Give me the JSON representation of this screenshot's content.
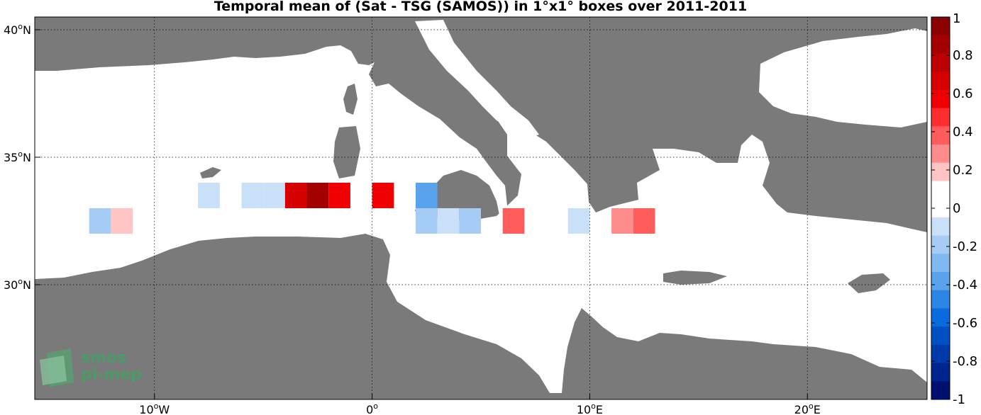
{
  "title": "Temporal mean of (Sat - TSG (SAMOS)) in 1°x1° boxes over 2011-2011",
  "map": {
    "lon_range": [
      -15.5,
      25.5
    ],
    "lat_range": [
      25.5,
      40.5
    ],
    "land_color": "#7a7a7a",
    "sea_color": "#ffffff",
    "lat_ticks": [
      {
        "value": 40,
        "deg": "40",
        "hemi": "N"
      },
      {
        "value": 35,
        "deg": "35",
        "hemi": "N"
      },
      {
        "value": 30,
        "deg": "30",
        "hemi": "N"
      }
    ],
    "lon_ticks": [
      {
        "value": -10,
        "deg": "10",
        "hemi": "W"
      },
      {
        "value": 0,
        "deg": "0",
        "hemi": ""
      },
      {
        "value": 10,
        "deg": "10",
        "hemi": "E"
      },
      {
        "value": 20,
        "deg": "20",
        "hemi": "E"
      }
    ]
  },
  "chart_data": {
    "type": "heatmap",
    "title": "Temporal mean of (Sat - TSG (SAMOS)) in 1°x1° boxes over 2011-2011",
    "cell_size_deg": 1,
    "cells": [
      {
        "lon": -12.5,
        "lat": 32.5,
        "value": -0.2
      },
      {
        "lon": -11.5,
        "lat": 32.5,
        "value": 0.2
      },
      {
        "lon": -9.5,
        "lat": 32.5,
        "value": 0.1
      },
      {
        "lon": -8.5,
        "lat": 32.5,
        "value": 0.1
      },
      {
        "lon": -7.5,
        "lat": 33.5,
        "value": -0.1
      },
      {
        "lon": -5.5,
        "lat": 33.5,
        "value": -0.1
      },
      {
        "lon": -4.5,
        "lat": 33.5,
        "value": -0.1
      },
      {
        "lon": -3.5,
        "lat": 33.5,
        "value": 0.7
      },
      {
        "lon": -2.5,
        "lat": 33.5,
        "value": 0.85
      },
      {
        "lon": -1.5,
        "lat": 33.5,
        "value": 0.6
      },
      {
        "lon": 0.5,
        "lat": 33.5,
        "value": 0.6
      },
      {
        "lon": 2.5,
        "lat": 33.5,
        "value": -0.4
      },
      {
        "lon": 2.5,
        "lat": 32.5,
        "value": -0.2
      },
      {
        "lon": 3.5,
        "lat": 32.5,
        "value": -0.1
      },
      {
        "lon": 4.5,
        "lat": 32.5,
        "value": -0.2
      },
      {
        "lon": 6.5,
        "lat": 32.5,
        "value": 0.4
      },
      {
        "lon": 9.5,
        "lat": 32.5,
        "value": -0.1
      },
      {
        "lon": 11.5,
        "lat": 32.5,
        "value": 0.3
      },
      {
        "lon": 12.5,
        "lat": 32.5,
        "value": 0.4
      },
      {
        "lon": 13.5,
        "lat": 32.5,
        "value": 0.1
      },
      {
        "lon": 12.5,
        "lat": 31.5,
        "value": 0.1
      }
    ],
    "colorbar": {
      "range": [
        -1,
        1
      ],
      "ticks": [
        1,
        0.8,
        0.6,
        0.4,
        0.2,
        0,
        -0.2,
        -0.4,
        -0.6,
        -0.8,
        -1
      ],
      "tick_labels": [
        "1",
        "0.8",
        "0.6",
        "0.4",
        "0.2",
        "0",
        "-0.2",
        "-0.4",
        "-0.6",
        "-0.8",
        "-1"
      ],
      "colors_top_to_bottom": [
        "#8b0000",
        "#a30000",
        "#bd0000",
        "#d60000",
        "#f00000",
        "#ff2e2e",
        "#ff5c5c",
        "#ff8c8c",
        "#ffc4c4",
        "#ffffff",
        "#ffffff",
        "#c8e0f8",
        "#a4ccf4",
        "#80b8f0",
        "#5aa2ec",
        "#2c86e6",
        "#0a6bde",
        "#0050c4",
        "#003aa8",
        "#00248e",
        "#00106e"
      ]
    }
  },
  "logo": {
    "line1": "smos",
    "line2": "pi-mep"
  }
}
